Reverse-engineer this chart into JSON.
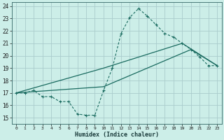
{
  "xlabel": "Humidex (Indice chaleur)",
  "bg_color": "#cceee8",
  "grid_color": "#aacccc",
  "line_color": "#1a6b60",
  "xlim": [
    -0.5,
    23.5
  ],
  "ylim": [
    14.5,
    24.3
  ],
  "xticks": [
    0,
    1,
    2,
    3,
    4,
    5,
    6,
    7,
    8,
    9,
    10,
    11,
    12,
    13,
    14,
    15,
    16,
    17,
    18,
    19,
    20,
    21,
    22,
    23
  ],
  "yticks": [
    15,
    16,
    17,
    18,
    19,
    20,
    21,
    22,
    23,
    24
  ],
  "line_dashed": {
    "x": [
      0,
      1,
      2,
      3,
      4,
      5,
      6,
      7,
      8,
      9,
      10,
      11,
      12,
      13,
      14,
      15,
      16,
      17,
      18,
      19,
      20,
      21,
      22,
      23
    ],
    "y": [
      17.0,
      17.0,
      17.2,
      16.7,
      16.7,
      16.3,
      16.3,
      15.3,
      15.2,
      15.2,
      17.2,
      19.0,
      21.8,
      23.1,
      23.8,
      23.2,
      22.5,
      21.8,
      21.5,
      21.0,
      20.5,
      19.9,
      19.2,
      19.2
    ]
  },
  "line_upper": {
    "x": [
      0,
      10,
      19,
      23
    ],
    "y": [
      17.0,
      19.0,
      21.0,
      19.2
    ]
  },
  "line_lower": {
    "x": [
      0,
      10,
      20,
      23
    ],
    "y": [
      17.0,
      17.5,
      20.5,
      19.2
    ]
  }
}
